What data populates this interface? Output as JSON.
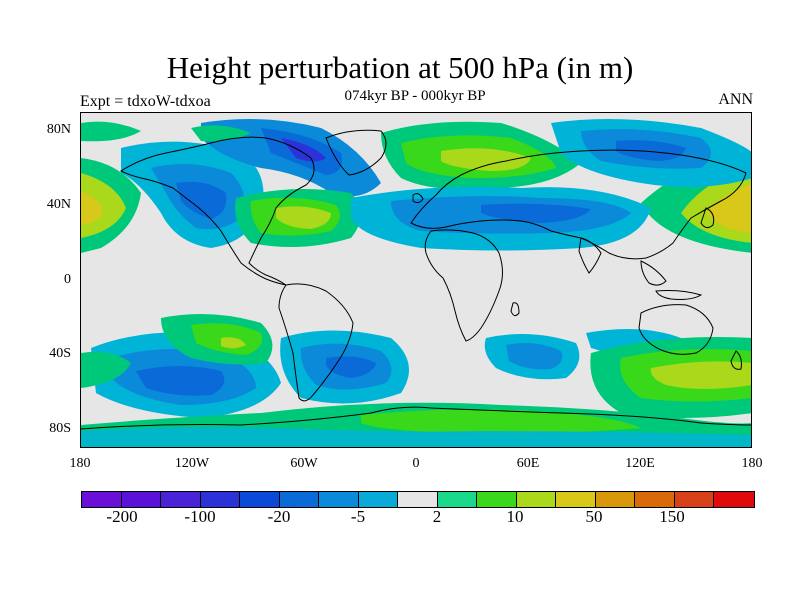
{
  "title": "Height perturbation at 500 hPa (in m)",
  "subtitle": "074kyr BP - 000kyr BP",
  "left_label": "Expt = tdxoW-tdxoa",
  "right_label": "ANN",
  "y_ticks": [
    "80N",
    "40N",
    "0",
    "40S",
    "80S"
  ],
  "x_ticks": [
    "180",
    "120W",
    "60W",
    "0",
    "60E",
    "120E",
    "180"
  ],
  "colorbar": {
    "colors": [
      "#6a0fd8",
      "#5a12d8",
      "#4a22d8",
      "#2a32d8",
      "#0a4ad8",
      "#0a6ad8",
      "#0a8ad8",
      "#0aaad8",
      "#e6e6e6",
      "#1ad88a",
      "#3ad81a",
      "#aad81a",
      "#d8c81a",
      "#d8980a",
      "#d86a0a",
      "#d8401a",
      "#e00a0a"
    ],
    "labels": [
      "-200",
      "-100",
      "-20",
      "-5",
      "2",
      "10",
      "50",
      "150"
    ]
  },
  "chart_data": {
    "type": "heatmap",
    "title": "Height perturbation at 500 hPa (in m)",
    "subtitle": "074kyr BP - 000kyr BP",
    "variable_units": "m",
    "x_ticks": [
      "180",
      "120W",
      "60W",
      "0",
      "60E",
      "120E",
      "180"
    ],
    "y_ticks": [
      "80N",
      "40N",
      "0",
      "40S",
      "80S"
    ],
    "xlim": [
      -180,
      180
    ],
    "ylim": [
      -90,
      90
    ],
    "contour_levels": [
      -200,
      -100,
      -20,
      -5,
      2,
      10,
      50,
      150
    ],
    "features": [
      {
        "region": "North Pacific, dateline",
        "lon": 180,
        "lat": 40,
        "sign": "positive",
        "range": "50 to 150"
      },
      {
        "region": "Western Pacific / Japan",
        "lon": 165,
        "lat": 38,
        "sign": "positive",
        "range": "50 to 150"
      },
      {
        "region": "North America / Canada",
        "lon": -110,
        "lat": 60,
        "sign": "negative",
        "range": "-20 to -100"
      },
      {
        "region": "Western North Atlantic",
        "lon": -62,
        "lat": 36,
        "sign": "positive",
        "range": "10 to 50"
      },
      {
        "region": "Greenland / Europe / Siberia",
        "lon": 30,
        "lat": 70,
        "sign": "positive",
        "range": "10 to 50"
      },
      {
        "region": "Subtropical Eurasia band",
        "lon": 50,
        "lat": 38,
        "sign": "negative",
        "range": "-5 to -20"
      },
      {
        "region": "Northeast Asia",
        "lon": 110,
        "lat": 62,
        "sign": "negative",
        "range": "-5 to -20"
      },
      {
        "region": "South Pacific",
        "lon": -135,
        "lat": -55,
        "sign": "negative",
        "range": "-5 to -20"
      },
      {
        "region": "Southeast Pacific",
        "lon": -100,
        "lat": -35,
        "sign": "positive",
        "range": "10 to 50"
      },
      {
        "region": "South Atlantic",
        "lon": -35,
        "lat": -50,
        "sign": "negative",
        "range": "-5 to -20"
      },
      {
        "region": "Southern Indian Ocean",
        "lon": 45,
        "lat": -43,
        "sign": "negative",
        "range": "-5 to -20"
      },
      {
        "region": "Southwest Pacific / New Zealand",
        "lon": 150,
        "lat": -53,
        "sign": "positive",
        "range": "10 to 50"
      },
      {
        "region": "Antarctic coast",
        "lon": 60,
        "lat": -72,
        "sign": "positive",
        "range": "2 to 10"
      }
    ]
  }
}
